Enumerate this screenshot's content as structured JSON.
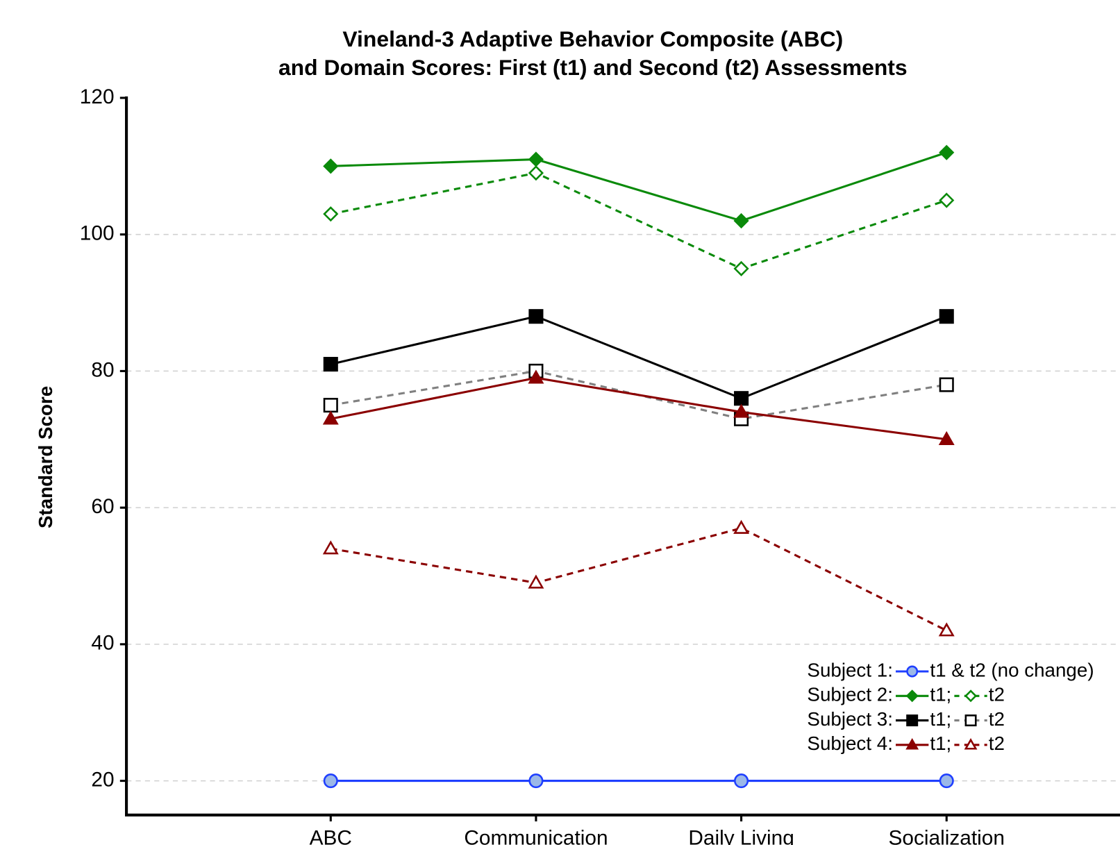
{
  "chart_data": {
    "type": "line",
    "title": [
      "Vineland-3 Adaptive Behavior Composite (ABC)",
      "and Domain Scores: First (t1) and Second (t2) Assessments"
    ],
    "y_label": "Standard Score",
    "categories": [
      "ABC",
      "Communication",
      "Daily Living",
      "Socialization"
    ],
    "ylim": [
      15,
      120
    ],
    "yticks": [
      20,
      40,
      60,
      80,
      100,
      120
    ],
    "grid": true,
    "legend": "lower right",
    "series": [
      {
        "subject": "Subject 1:",
        "name": "t1 & t2 (no change)",
        "color": "#1f3fff",
        "marker": "circle",
        "marker_fill": "#9bb8e8",
        "dashed": false,
        "values": [
          20,
          20,
          20,
          20
        ]
      },
      {
        "subject": "Subject 2:",
        "name": "t1;",
        "color": "#0a8a0a",
        "marker": "diamond",
        "marker_fill": "#0a8a0a",
        "dashed": false,
        "values": [
          110,
          111,
          102,
          112
        ]
      },
      {
        "subject": "Subject 2:",
        "name": "t2",
        "color": "#0a8a0a",
        "marker": "diamond",
        "marker_fill": "#ffffff",
        "dashed": true,
        "values": [
          103,
          109,
          95,
          105
        ]
      },
      {
        "subject": "Subject 3:",
        "name": "t1;",
        "color": "#000000",
        "marker": "square",
        "marker_fill": "#000000",
        "dashed": false,
        "values": [
          81,
          88,
          76,
          88
        ]
      },
      {
        "subject": "Subject 3:",
        "name": "t2",
        "color": "#808080",
        "marker": "square",
        "marker_fill": "#ffffff",
        "marker_stroke": "#000000",
        "dashed": true,
        "values": [
          75,
          80,
          73,
          78
        ]
      },
      {
        "subject": "Subject 4:",
        "name": "t1;",
        "color": "#8b0000",
        "marker": "triangle",
        "marker_fill": "#8b0000",
        "dashed": false,
        "values": [
          73,
          79,
          74,
          70
        ]
      },
      {
        "subject": "Subject 4:",
        "name": "t2",
        "color": "#8b0000",
        "marker": "triangle",
        "marker_fill": "#ffffff",
        "dashed": true,
        "values": [
          54,
          49,
          57,
          42
        ]
      }
    ]
  }
}
